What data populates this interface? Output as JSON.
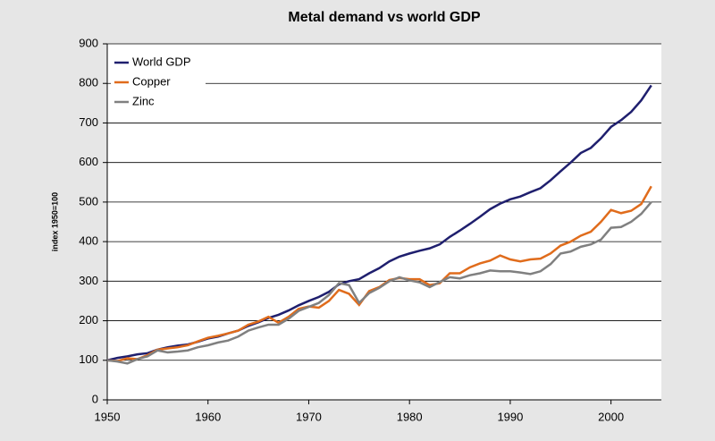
{
  "chart_data": {
    "type": "line",
    "title": "Metal demand vs world GDP",
    "y_label": "index 1950=100",
    "x": [
      1950,
      1951,
      1952,
      1953,
      1954,
      1955,
      1956,
      1957,
      1958,
      1959,
      1960,
      1961,
      1962,
      1963,
      1964,
      1965,
      1966,
      1967,
      1968,
      1969,
      1970,
      1971,
      1972,
      1973,
      1974,
      1975,
      1976,
      1977,
      1978,
      1979,
      1980,
      1981,
      1982,
      1983,
      1984,
      1985,
      1986,
      1987,
      1988,
      1989,
      1990,
      1991,
      1992,
      1993,
      1994,
      1995,
      1996,
      1997,
      1998,
      1999,
      2000,
      2001,
      2002,
      2003,
      2004
    ],
    "series": [
      {
        "name": "World GDP",
        "color": "#1f1f6e",
        "values": [
          100,
          106,
          110,
          115,
          118,
          127,
          133,
          137,
          140,
          147,
          155,
          160,
          168,
          175,
          187,
          196,
          207,
          215,
          226,
          239,
          250,
          260,
          273,
          292,
          300,
          305,
          320,
          333,
          350,
          362,
          370,
          377,
          383,
          393,
          412,
          428,
          445,
          463,
          482,
          496,
          507,
          514,
          525,
          535,
          555,
          578,
          600,
          624,
          637,
          661,
          690,
          707,
          728,
          757,
          795
        ]
      },
      {
        "name": "Copper",
        "color": "#e06c1c",
        "values": [
          100,
          98,
          105,
          103,
          113,
          127,
          130,
          133,
          138,
          148,
          157,
          162,
          168,
          175,
          190,
          198,
          210,
          195,
          210,
          230,
          236,
          233,
          250,
          278,
          268,
          240,
          275,
          285,
          303,
          308,
          305,
          305,
          290,
          295,
          320,
          320,
          335,
          345,
          352,
          365,
          355,
          350,
          355,
          357,
          370,
          390,
          400,
          415,
          425,
          450,
          480,
          472,
          478,
          495,
          540
        ]
      },
      {
        "name": "Zinc",
        "color": "#808080",
        "values": [
          100,
          97,
          92,
          103,
          110,
          125,
          120,
          122,
          125,
          133,
          138,
          145,
          150,
          160,
          175,
          183,
          190,
          190,
          205,
          225,
          235,
          245,
          265,
          295,
          290,
          245,
          270,
          283,
          300,
          310,
          302,
          297,
          285,
          298,
          310,
          307,
          315,
          320,
          327,
          325,
          325,
          322,
          318,
          325,
          343,
          370,
          375,
          387,
          393,
          405,
          435,
          437,
          450,
          470,
          500
        ]
      }
    ],
    "xlim": [
      1950,
      2005
    ],
    "xticks": [
      1950,
      1960,
      1970,
      1980,
      1990,
      2000
    ],
    "ylim": [
      0,
      900
    ],
    "yticks": [
      0,
      100,
      200,
      300,
      400,
      500,
      600,
      700,
      800,
      900
    ],
    "grid": true,
    "legend": "upper-left"
  }
}
